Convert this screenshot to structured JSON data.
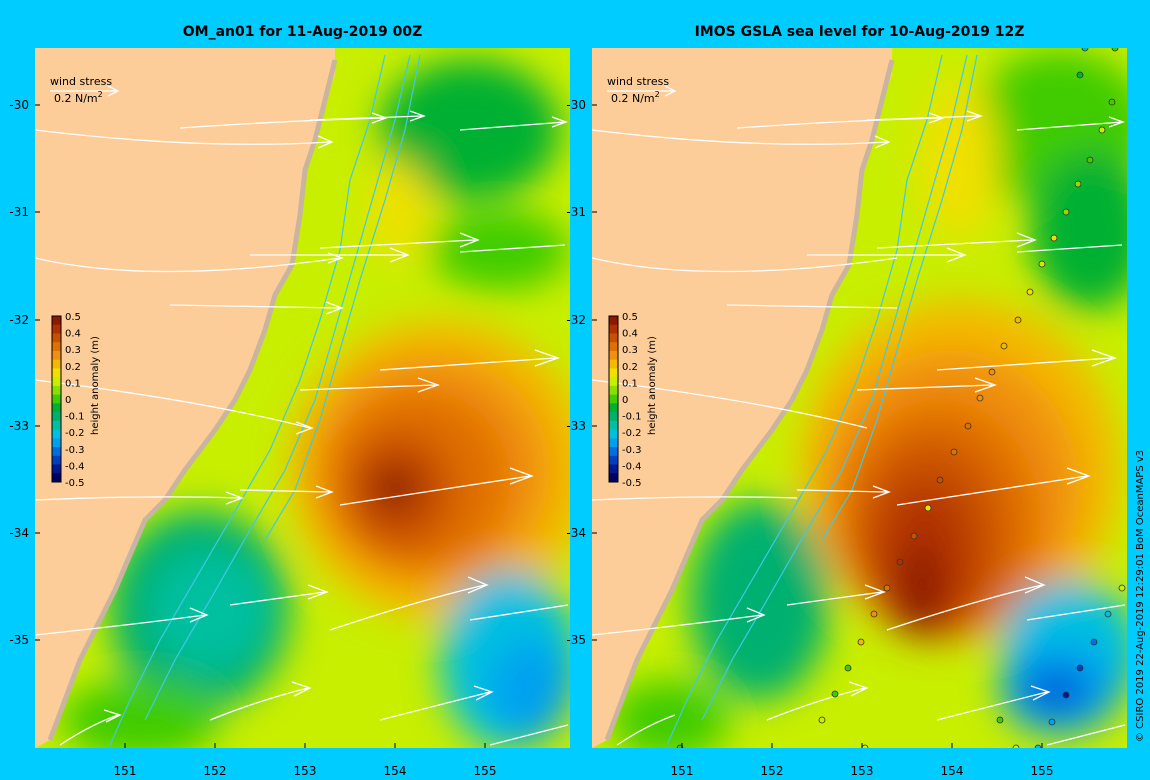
{
  "panels": [
    {
      "title": "OM_an01 for 11-Aug-2019 00Z",
      "wind_legend_label": "wind stress",
      "wind_legend_value": "0.2 N/m",
      "wind_legend_sup": "2"
    },
    {
      "title": "IMOS GSLA sea level  for 10-Aug-2019 12Z",
      "wind_legend_label": "wind stress",
      "wind_legend_value": "0.2 N/m",
      "wind_legend_sup": "2"
    }
  ],
  "y_ticks": [
    "-30",
    "-31",
    "-32",
    "-33",
    "-34",
    "-35"
  ],
  "x_ticks": [
    "151",
    "152",
    "153",
    "154",
    "155"
  ],
  "colorbar": {
    "label": "height anomaly (m)",
    "ticks": [
      "0.5",
      "0.4",
      "0.3",
      "0.2",
      "0.1",
      "0",
      "-0.1",
      "-0.2",
      "-0.3",
      "-0.4",
      "-0.5"
    ],
    "colors": [
      "#8b1a00",
      "#b03000",
      "#c85000",
      "#e07000",
      "#f09010",
      "#f4b800",
      "#f0e000",
      "#c8ee00",
      "#88e000",
      "#40cc00",
      "#00b030",
      "#00b070",
      "#00c0a0",
      "#00c0e0",
      "#00a0f0",
      "#0070e0",
      "#0040c0",
      "#001890",
      "#000060"
    ]
  },
  "colors": {
    "background": "#00ccff",
    "land": "#fccc99",
    "frame": "#c8b4a0"
  },
  "credit": "© CSIRO 2019   22-Aug-2019 12:29:01 BoM OceanMAPS v3"
}
